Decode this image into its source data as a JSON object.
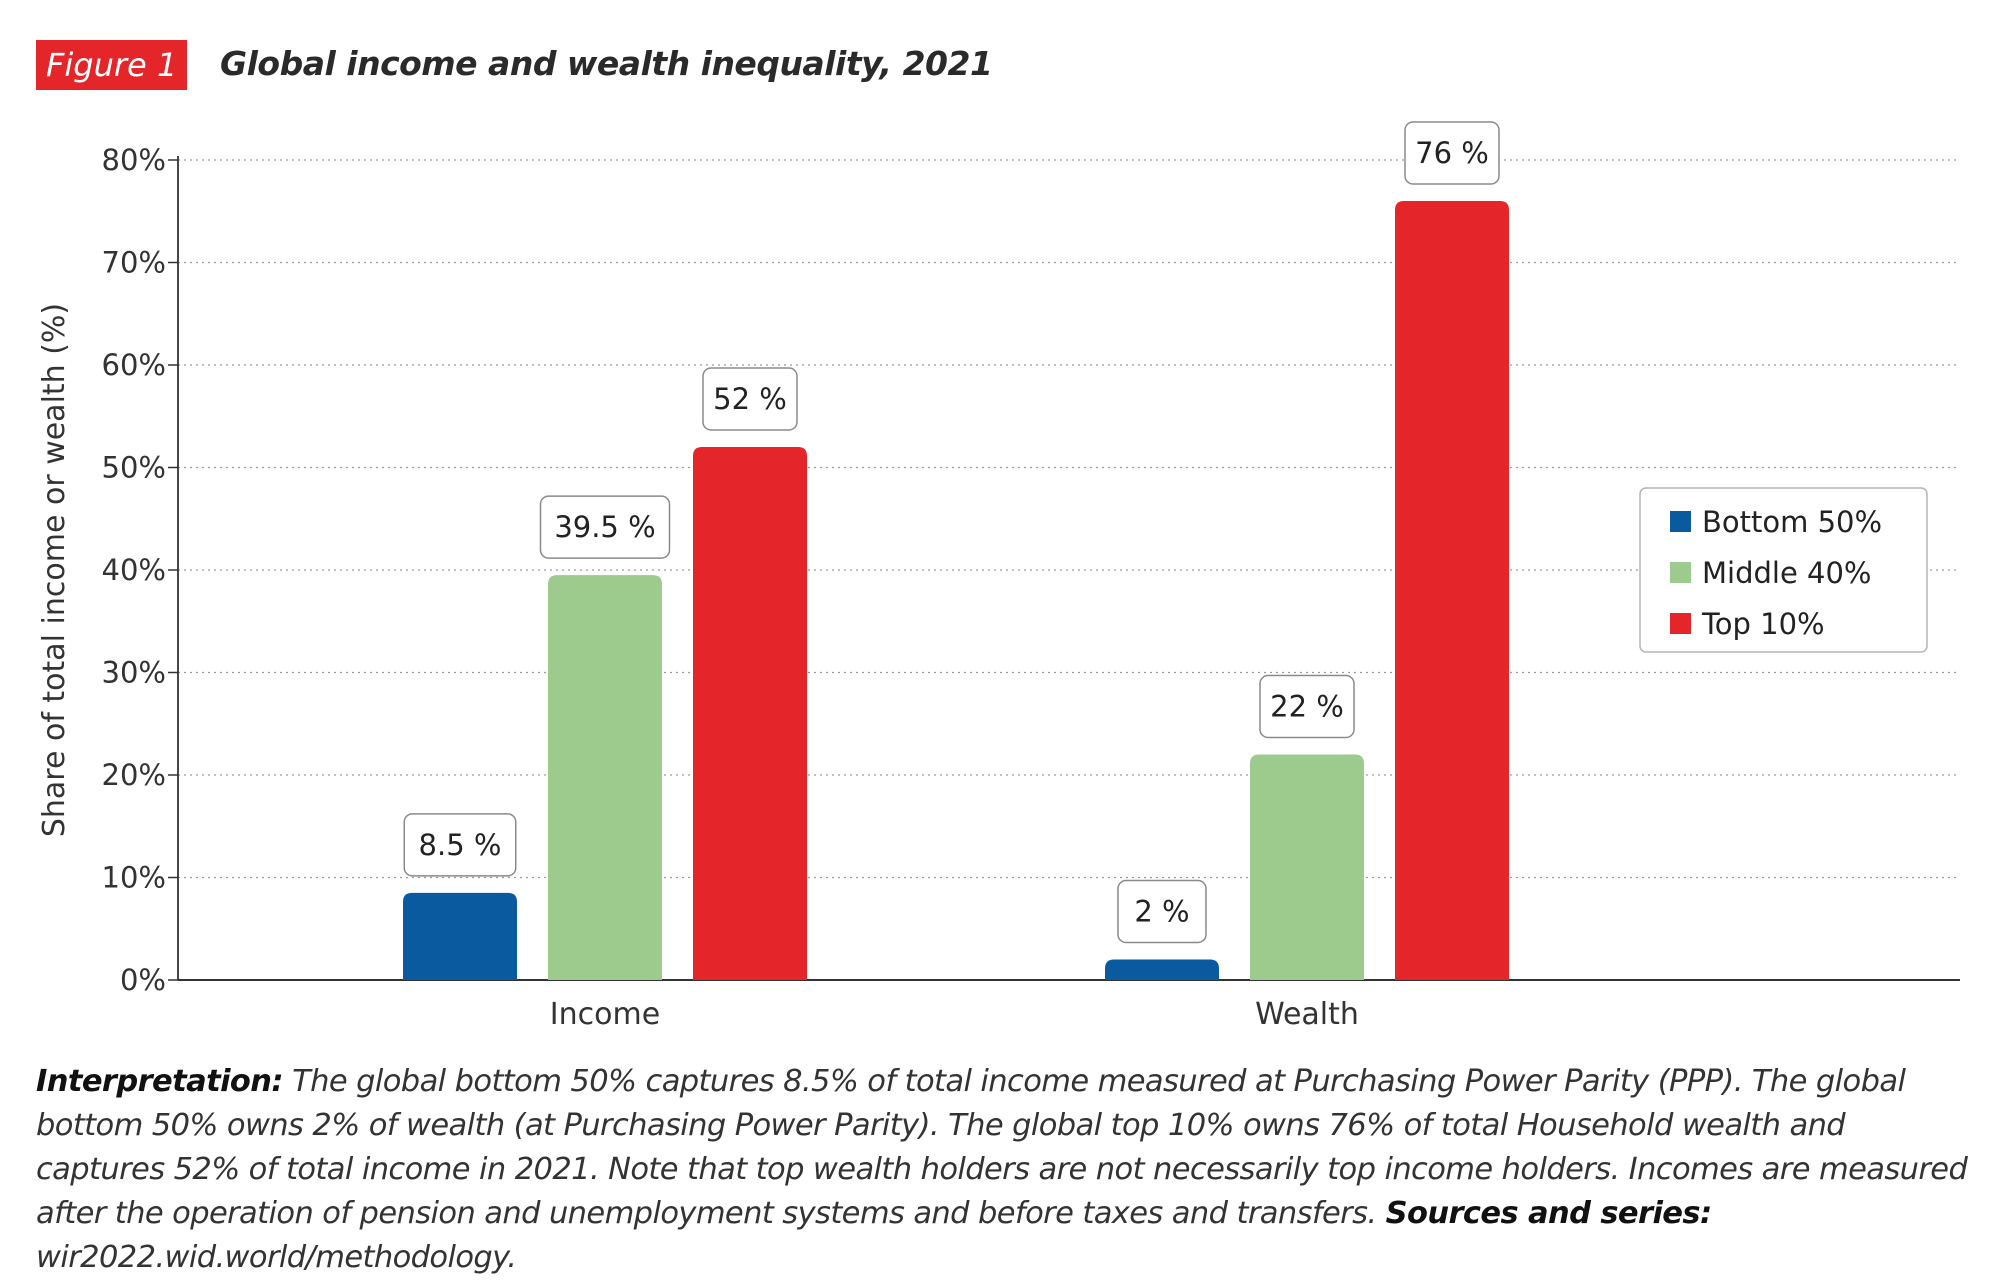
{
  "figure_label": "Figure 1",
  "chart_data": {
    "type": "bar",
    "title": "Global income and wealth inequality, 2021",
    "ylabel": "Share of total income or wealth (%)",
    "xlabel": "",
    "categories": [
      "Income",
      "Wealth"
    ],
    "ylim": [
      0,
      80
    ],
    "yticks": [
      "0%",
      "10%",
      "20%",
      "30%",
      "40%",
      "50%",
      "60%",
      "70%",
      "80%"
    ],
    "grid": true,
    "legend_position": "right",
    "series": [
      {
        "name": "Bottom 50%",
        "color": "#0a5aa0",
        "values": [
          8.5,
          2
        ],
        "labels": [
          "8.5 %",
          "2 %"
        ]
      },
      {
        "name": "Middle 40%",
        "color": "#9dca8d",
        "values": [
          39.5,
          22
        ],
        "labels": [
          "39.5 %",
          "22 %"
        ]
      },
      {
        "name": "Top 10%",
        "color": "#e4262a",
        "values": [
          52,
          76
        ],
        "labels": [
          "52 %",
          "76 %"
        ]
      }
    ]
  },
  "caption": {
    "interpretation_label": "Interpretation:",
    "interpretation_text": " The global bottom 50% captures 8.5% of total income measured at Purchasing Power Parity (PPP). The global bottom 50% owns 2% of wealth (at Purchasing Power Parity). The global top 10% owns 76% of total Household wealth and captures 52% of total income in 2021. Note that top wealth holders are not necessarily top income holders. Incomes are measured after the operation of pension and unemployment systems and before taxes and transfers.",
    "sources_label": "Sources and series:",
    "sources_text": " wir2022.wid.world/methodology."
  }
}
